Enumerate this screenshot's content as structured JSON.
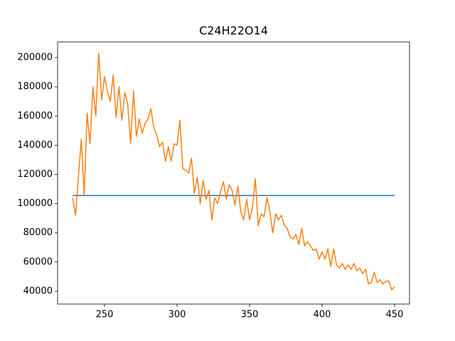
{
  "chart_data": {
    "type": "line",
    "title": "C24H22O14",
    "xlim": [
      217.65,
      460.3
    ],
    "ylim": [
      31245,
      210700
    ],
    "xticks": [
      250,
      300,
      350,
      400,
      450
    ],
    "yticks": [
      40000,
      60000,
      80000,
      100000,
      120000,
      140000,
      160000,
      180000,
      200000
    ],
    "grid": false,
    "series": [
      {
        "color": "#1f77b4",
        "x": [
          228,
          450
        ],
        "values": [
          105500,
          105500
        ]
      },
      {
        "color": "#ff7f0e",
        "x": [
          228,
          230,
          232,
          234,
          236,
          238,
          240,
          242,
          244,
          246,
          248,
          250,
          252,
          254,
          256,
          258,
          260,
          262,
          264,
          266,
          268,
          270,
          272,
          274,
          276,
          278,
          280,
          282,
          284,
          286,
          288,
          290,
          292,
          294,
          296,
          298,
          300,
          302,
          304,
          306,
          308,
          310,
          312,
          314,
          316,
          318,
          320,
          322,
          324,
          326,
          328,
          330,
          332,
          334,
          336,
          338,
          340,
          342,
          344,
          346,
          348,
          350,
          352,
          354,
          356,
          358,
          360,
          362,
          364,
          366,
          368,
          370,
          372,
          374,
          376,
          378,
          380,
          382,
          384,
          386,
          388,
          390,
          392,
          394,
          396,
          398,
          400,
          402,
          404,
          406,
          408,
          410,
          412,
          414,
          416,
          418,
          420,
          422,
          424,
          426,
          428,
          430,
          432,
          434,
          436,
          438,
          440,
          442,
          444,
          446,
          448,
          450
        ],
        "values": [
          104000,
          92000,
          118000,
          144000,
          106000,
          162000,
          141000,
          180000,
          160000,
          203000,
          171000,
          187000,
          177000,
          170000,
          188000,
          159000,
          180000,
          157000,
          176000,
          168000,
          141000,
          177000,
          146000,
          158000,
          148000,
          155000,
          158000,
          165000,
          152000,
          147000,
          139000,
          142000,
          129000,
          139000,
          129000,
          141000,
          140000,
          157000,
          124000,
          123000,
          121000,
          131000,
          107000,
          118000,
          100000,
          116000,
          103000,
          109000,
          89000,
          104000,
          100000,
          108000,
          115000,
          103000,
          113000,
          109000,
          99000,
          112000,
          94000,
          89000,
          103000,
          89000,
          97000,
          117000,
          85000,
          93000,
          91000,
          104000,
          95000,
          80000,
          93000,
          89000,
          92000,
          85000,
          83000,
          77000,
          76000,
          79000,
          72000,
          83000,
          71000,
          74000,
          71000,
          68000,
          69000,
          62000,
          67000,
          62000,
          69000,
          57000,
          69000,
          58000,
          56000,
          59000,
          55000,
          58000,
          55000,
          59000,
          54000,
          56000,
          52000,
          55000,
          45000,
          46000,
          53000,
          46000,
          48000,
          45000,
          47000,
          47000,
          41000,
          43000
        ]
      }
    ]
  }
}
